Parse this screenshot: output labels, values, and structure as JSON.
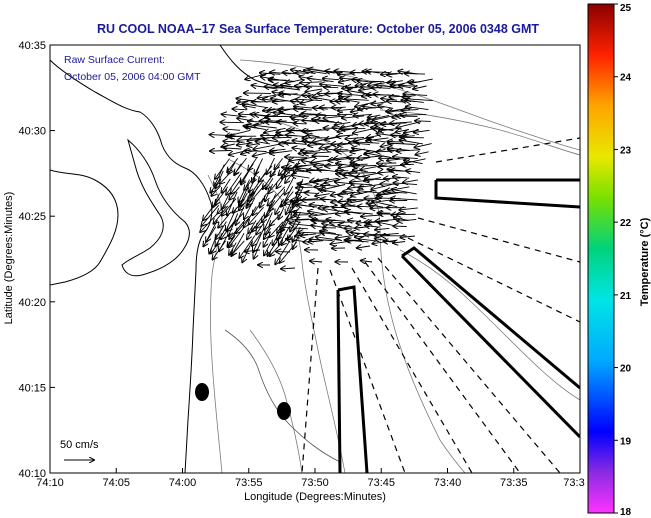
{
  "chart_data": {
    "type": "map",
    "title": "RU COOL  NOAA–17  Sea Surface Temperature:  October 05, 2006 0348 GMT",
    "annotation": {
      "line1": "Raw Surface Current:",
      "line2": "October 05, 2006 04:00 GMT"
    },
    "xlabel": "Longitude (Degrees:Minutes)",
    "ylabel": "Latitude (Degrees:Minutes)",
    "x_ticks": [
      "74:10",
      "74:05",
      "74:00",
      "73:55",
      "73:50",
      "73:45",
      "73:40",
      "73:35",
      "73:3"
    ],
    "y_ticks": [
      "40:35",
      "40:30",
      "40:25",
      "40:20",
      "40:15",
      "40:10"
    ],
    "scale_label": "50 cm/s",
    "colorbar": {
      "label": "Temperature (°C)",
      "min": 18,
      "max": 25,
      "ticks": [
        "25",
        "24",
        "23",
        "22",
        "21",
        "20",
        "19",
        "18"
      ]
    }
  }
}
